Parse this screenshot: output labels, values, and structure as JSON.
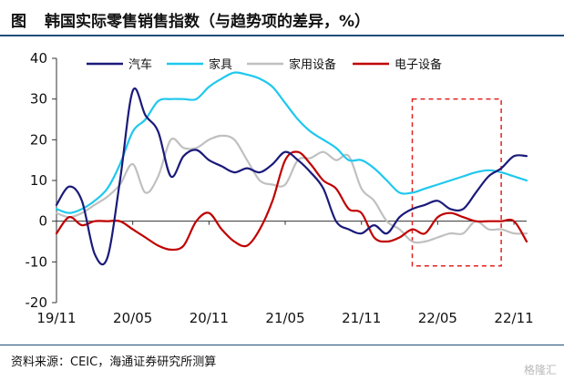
{
  "figure": {
    "label": "图",
    "title": "韩国实际零售销售指数（与趋势项的差异，%）"
  },
  "source": "资料来源：CEIC，海通证券研究所测算",
  "watermark": "格隆汇",
  "colors": {
    "title_rule": "#1f4e79",
    "highlight_box": "#e02020"
  },
  "chart_data": {
    "type": "line",
    "title": "韩国实际零售销售指数（与趋势项的差异，%）",
    "xlabel": "",
    "ylabel": "",
    "ylim": [
      -20,
      40
    ],
    "yticks": [
      -20,
      -10,
      0,
      10,
      20,
      30,
      40
    ],
    "x_range": [
      "2019-11",
      "2022-12"
    ],
    "x_ticks": [
      "19/11",
      "20/05",
      "20/11",
      "21/05",
      "21/11",
      "22/05",
      "22/11"
    ],
    "legend_position": "top",
    "grid": false,
    "highlight_period": [
      "2022-03",
      "2022-10"
    ],
    "highlight_range": [
      -11,
      30
    ],
    "series": [
      {
        "name": "汽车",
        "color": "#1a1a7a",
        "x": [
          "2019-11",
          "2019-12",
          "2020-01",
          "2020-02",
          "2020-03",
          "2020-04",
          "2020-05",
          "2020-06",
          "2020-07",
          "2020-08",
          "2020-09",
          "2020-10",
          "2020-11",
          "2020-12",
          "2021-01",
          "2021-02",
          "2021-03",
          "2021-04",
          "2021-05",
          "2021-06",
          "2021-07",
          "2021-08",
          "2021-09",
          "2021-10",
          "2021-11",
          "2021-12",
          "2022-01",
          "2022-02",
          "2022-03",
          "2022-04",
          "2022-05",
          "2022-06",
          "2022-07",
          "2022-08",
          "2022-09",
          "2022-10",
          "2022-11",
          "2022-12"
        ],
        "values": [
          4,
          8.5,
          5,
          -8,
          -9,
          10,
          32,
          26,
          22,
          11,
          16,
          17.5,
          15,
          13.5,
          12,
          13,
          12,
          14,
          17,
          15,
          12,
          8,
          0,
          -2,
          -3,
          -1,
          -3,
          1,
          3,
          4,
          5,
          3,
          3,
          7,
          11,
          13,
          16,
          16
        ]
      },
      {
        "name": "家具",
        "color": "#1ec8ee",
        "x": [
          "2019-11",
          "2019-12",
          "2020-01",
          "2020-02",
          "2020-03",
          "2020-04",
          "2020-05",
          "2020-06",
          "2020-07",
          "2020-08",
          "2020-09",
          "2020-10",
          "2020-11",
          "2020-12",
          "2021-01",
          "2021-02",
          "2021-03",
          "2021-04",
          "2021-05",
          "2021-06",
          "2021-07",
          "2021-08",
          "2021-09",
          "2021-10",
          "2021-11",
          "2021-12",
          "2022-01",
          "2022-02",
          "2022-03",
          "2022-04",
          "2022-05",
          "2022-06",
          "2022-07",
          "2022-08",
          "2022-09",
          "2022-10",
          "2022-11",
          "2022-12"
        ],
        "values": [
          3,
          2,
          3,
          5,
          8,
          14,
          22,
          25,
          29.5,
          30,
          30,
          30,
          33,
          35,
          36.5,
          36,
          35,
          33,
          29,
          25,
          22,
          20,
          18,
          15,
          15,
          13,
          10,
          7,
          7,
          8,
          9,
          10,
          11,
          12,
          12.5,
          12,
          11,
          10
        ]
      },
      {
        "name": "家用设备",
        "color": "#c0c0c0",
        "x": [
          "2019-11",
          "2019-12",
          "2020-01",
          "2020-02",
          "2020-03",
          "2020-04",
          "2020-05",
          "2020-06",
          "2020-07",
          "2020-08",
          "2020-09",
          "2020-10",
          "2020-11",
          "2020-12",
          "2021-01",
          "2021-02",
          "2021-03",
          "2021-04",
          "2021-05",
          "2021-06",
          "2021-07",
          "2021-08",
          "2021-09",
          "2021-10",
          "2021-11",
          "2021-12",
          "2022-01",
          "2022-02",
          "2022-03",
          "2022-04",
          "2022-05",
          "2022-06",
          "2022-07",
          "2022-08",
          "2022-09",
          "2022-10",
          "2022-11",
          "2022-12"
        ],
        "values": [
          2,
          1,
          2,
          4,
          6,
          9,
          14,
          7,
          11,
          20,
          18,
          18,
          20,
          21,
          20,
          15,
          10,
          9,
          9,
          15,
          15.5,
          17,
          15,
          16,
          8,
          5,
          0,
          -2,
          -5,
          -5,
          -4,
          -3,
          -3,
          0,
          -2,
          -2,
          -3,
          -3
        ]
      },
      {
        "name": "电子设备",
        "color": "#c00000",
        "x": [
          "2019-11",
          "2019-12",
          "2020-01",
          "2020-02",
          "2020-03",
          "2020-04",
          "2020-05",
          "2020-06",
          "2020-07",
          "2020-08",
          "2020-09",
          "2020-10",
          "2020-11",
          "2020-12",
          "2021-01",
          "2021-02",
          "2021-03",
          "2021-04",
          "2021-05",
          "2021-06",
          "2021-07",
          "2021-08",
          "2021-09",
          "2021-10",
          "2021-11",
          "2021-12",
          "2022-01",
          "2022-02",
          "2022-03",
          "2022-04",
          "2022-05",
          "2022-06",
          "2022-07",
          "2022-08",
          "2022-09",
          "2022-10",
          "2022-11",
          "2022-12"
        ],
        "values": [
          -3,
          1,
          -1,
          0,
          0,
          0,
          -2,
          -4,
          -6,
          -7,
          -6,
          0,
          2,
          -2,
          -5,
          -6,
          -2,
          5,
          15,
          17,
          14,
          10,
          8,
          3,
          2,
          -4,
          -5,
          -4,
          -2,
          -3,
          1,
          2,
          1,
          0,
          0,
          0,
          0,
          -5
        ]
      }
    ]
  }
}
